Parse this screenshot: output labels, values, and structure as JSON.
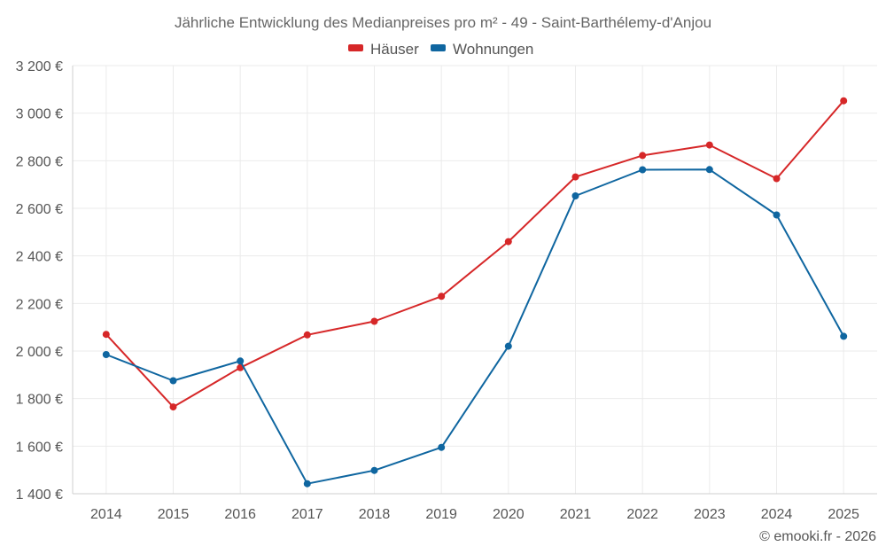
{
  "chart_data": {
    "type": "line",
    "title": "Jährliche Entwicklung des Medianpreises pro m² - 49 - Saint-Barthélemy-d'Anjou",
    "categories": [
      "2014",
      "2015",
      "2016",
      "2017",
      "2018",
      "2019",
      "2020",
      "2021",
      "2022",
      "2023",
      "2024",
      "2025"
    ],
    "series": [
      {
        "name": "Häuser",
        "color": "#d62728",
        "values": [
          2070,
          1765,
          1930,
          2068,
          2125,
          2230,
          2460,
          2732,
          2822,
          2866,
          2725,
          3052
        ]
      },
      {
        "name": "Wohnungen",
        "color": "#0f66a0",
        "values": [
          1985,
          1875,
          1958,
          1442,
          1498,
          1595,
          2020,
          2652,
          2762,
          2763,
          2572,
          2062
        ]
      }
    ],
    "ylim": [
      1400,
      3200
    ],
    "yticks": [
      1400,
      1600,
      1800,
      2000,
      2200,
      2400,
      2600,
      2800,
      3000,
      3200
    ],
    "ytick_labels": [
      "1 400 €",
      "1 600 €",
      "1 800 €",
      "2 000 €",
      "2 200 €",
      "2 400 €",
      "2 600 €",
      "2 800 €",
      "3 000 €",
      "3 200 €"
    ],
    "xlabel": "",
    "ylabel": "",
    "grid": true,
    "legend_position": "top-center"
  },
  "credit": "© emooki.fr - 2026"
}
